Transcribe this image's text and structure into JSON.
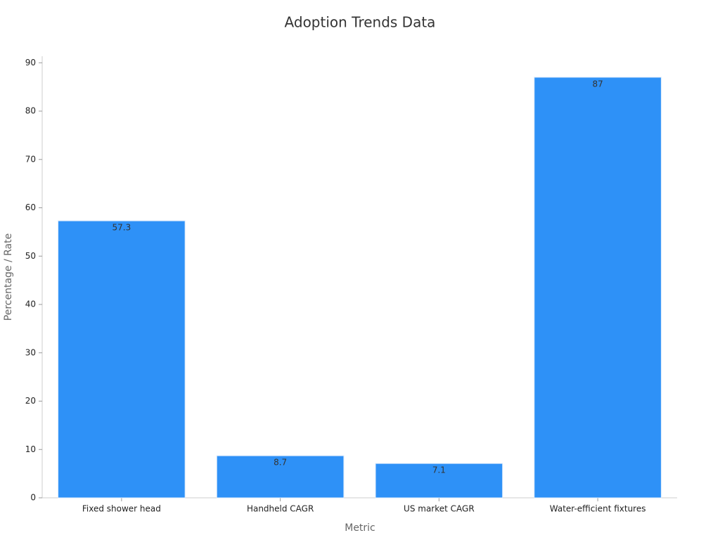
{
  "chart_data": {
    "type": "bar",
    "title": "Adoption Trends Data",
    "x_label": "Metric",
    "y_label": "Percentage / Rate",
    "categories": [
      "Fixed shower head",
      "Handheld CAGR",
      "US market CAGR",
      "Water-efficient fixtures"
    ],
    "values": [
      57.3,
      8.7,
      7.1,
      87
    ],
    "color": "#2e91f7",
    "ylim": [
      0,
      91.35
    ],
    "yticks": [
      0,
      10,
      20,
      30,
      40,
      50,
      60,
      70,
      80,
      90
    ],
    "grid": false
  }
}
